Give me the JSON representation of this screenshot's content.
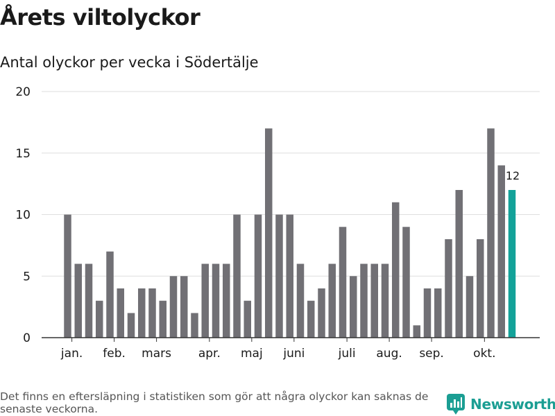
{
  "header": {
    "title": "Årets viltolyckor",
    "subtitle": "Antal olyckor per vecka i Södertälje"
  },
  "footer": {
    "note": "Det finns en eftersläpning i statistiken som gör att några olyckor kan saknas de senaste veckorna.",
    "brand": "Newsworthy"
  },
  "colors": {
    "bar": "#717075",
    "highlight": "#13a299",
    "grid": "#dedede",
    "axis": "#333333",
    "text": "#1a1a1a",
    "brand": "#1b9e93"
  },
  "chart_data": {
    "type": "bar",
    "title": "Årets viltolyckor",
    "subtitle": "Antal olyckor per vecka i Södertälje",
    "xlabel": "",
    "ylabel": "",
    "ylim": [
      0,
      20
    ],
    "yticks": [
      0,
      5,
      10,
      15,
      20
    ],
    "grid": true,
    "weeks": [
      1,
      2,
      3,
      4,
      5,
      6,
      7,
      8,
      9,
      10,
      11,
      12,
      13,
      14,
      15,
      16,
      17,
      18,
      19,
      20,
      21,
      22,
      23,
      24,
      25,
      26,
      27,
      28,
      29,
      30,
      31,
      32,
      33,
      34,
      35,
      36,
      37,
      38,
      39,
      40,
      41,
      42,
      43
    ],
    "values": [
      10,
      6,
      6,
      3,
      7,
      4,
      2,
      4,
      4,
      3,
      5,
      5,
      2,
      6,
      6,
      6,
      10,
      3,
      10,
      17,
      10,
      10,
      6,
      3,
      4,
      6,
      9,
      5,
      6,
      6,
      6,
      11,
      9,
      1,
      4,
      4,
      8,
      12,
      5,
      8,
      17,
      14,
      12
    ],
    "highlight_index": 42,
    "highlight_label": "12",
    "month_labels": [
      {
        "label": "jan.",
        "week": 1.4
      },
      {
        "label": "feb.",
        "week": 5.4
      },
      {
        "label": "mars",
        "week": 9.4
      },
      {
        "label": "apr.",
        "week": 14.4
      },
      {
        "label": "maj",
        "week": 18.4
      },
      {
        "label": "juni",
        "week": 22.4
      },
      {
        "label": "juli",
        "week": 27.4
      },
      {
        "label": "aug.",
        "week": 31.4
      },
      {
        "label": "sep.",
        "week": 35.4
      },
      {
        "label": "okt.",
        "week": 40.4
      }
    ]
  }
}
